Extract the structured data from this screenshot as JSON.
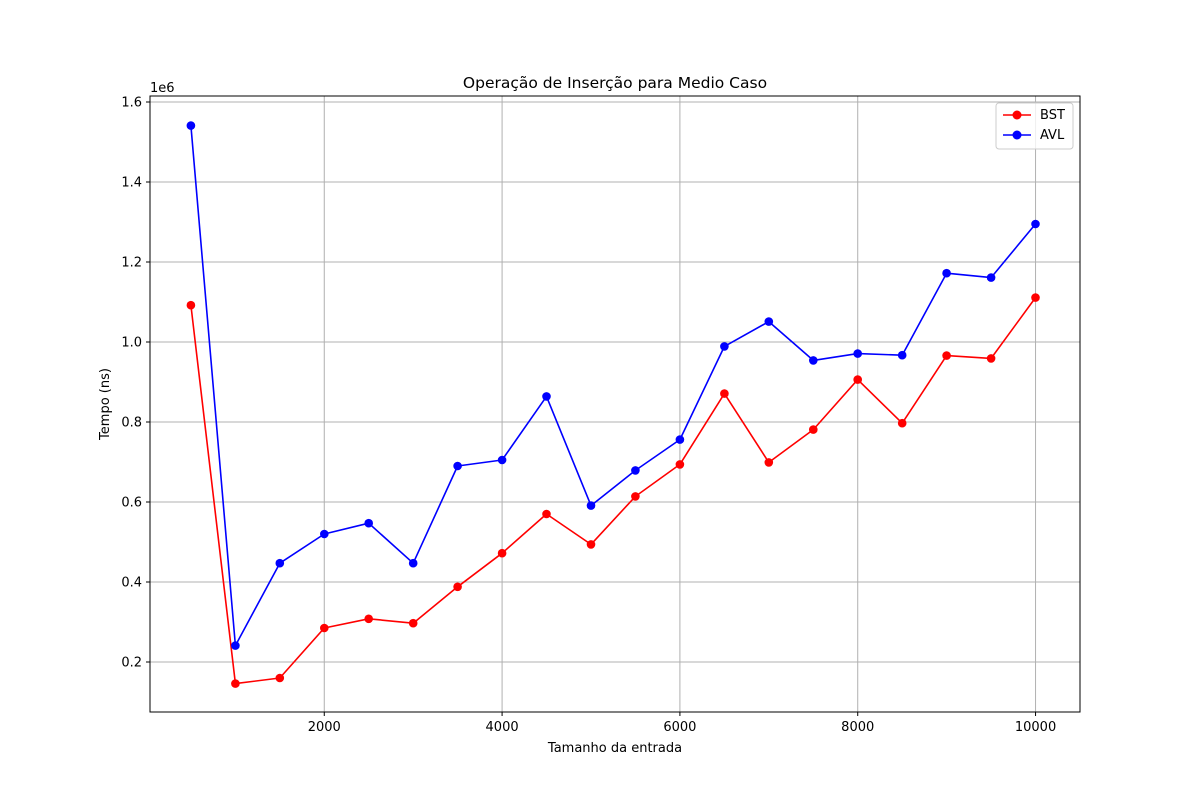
{
  "chart_data": {
    "type": "line",
    "title": "Operação de Inserção para Medio Caso",
    "xlabel": "Tamanho da entrada",
    "ylabel": "Tempo (ns)",
    "y_offset_label": "1e6",
    "xlim": [
      40,
      10500
    ],
    "ylim": [
      75000,
      1615000
    ],
    "x_ticks": [
      2000,
      4000,
      6000,
      8000,
      10000
    ],
    "x_tick_labels": [
      "2000",
      "4000",
      "6000",
      "8000",
      "10000"
    ],
    "y_ticks": [
      200000,
      400000,
      600000,
      800000,
      1000000,
      1200000,
      1400000,
      1600000
    ],
    "y_tick_labels": [
      "0.2",
      "0.4",
      "0.6",
      "0.8",
      "1.0",
      "1.2",
      "1.4",
      "1.6"
    ],
    "grid": true,
    "legend_position": "top-right",
    "x": [
      500,
      1000,
      1500,
      2000,
      2500,
      3000,
      3500,
      4000,
      4500,
      5000,
      5500,
      6000,
      6500,
      7000,
      7500,
      8000,
      8500,
      9000,
      9500,
      10000
    ],
    "series": [
      {
        "name": "BST",
        "color": "#ff0000",
        "marker": "circle",
        "values": [
          1092000,
          146000,
          160000,
          285000,
          308000,
          297000,
          388000,
          472000,
          570000,
          494000,
          614000,
          694000,
          871000,
          699000,
          781000,
          906000,
          797000,
          966000,
          959000,
          1111000
        ]
      },
      {
        "name": "AVL",
        "color": "#0000ff",
        "marker": "circle",
        "values": [
          1541000,
          241000,
          447000,
          520000,
          547000,
          447000,
          690000,
          705000,
          864000,
          591000,
          679000,
          756000,
          989000,
          1051000,
          954000,
          971000,
          967000,
          1172000,
          1161000,
          1295000
        ]
      }
    ]
  }
}
